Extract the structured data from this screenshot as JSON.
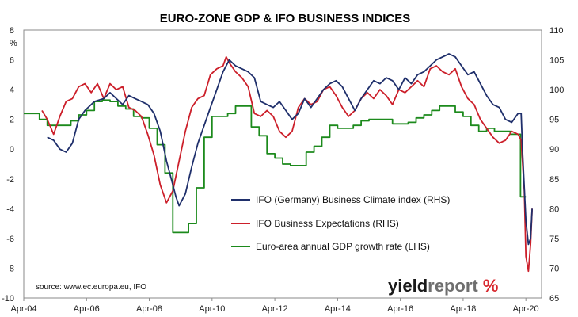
{
  "chart_data": {
    "type": "line",
    "title": "EURO-ZONE GDP & IFO BUSINESS INDICES",
    "left_axis": {
      "unit": "%",
      "range": [
        -10,
        8
      ],
      "ticks": [
        8,
        6,
        4,
        2,
        0,
        -2,
        -4,
        -6,
        -8,
        -10
      ]
    },
    "right_axis": {
      "range": [
        65,
        110
      ],
      "ticks": [
        110,
        105,
        100,
        95,
        90,
        85,
        80,
        75,
        70,
        65
      ]
    },
    "x_axis": {
      "range": [
        2004.25,
        2020.75
      ],
      "ticks": [
        "Apr-04",
        "Apr-06",
        "Apr-08",
        "Apr-10",
        "Apr-12",
        "Apr-14",
        "Apr-16",
        "Apr-18",
        "Apr-20"
      ],
      "tick_years": [
        2004.25,
        2006.25,
        2008.25,
        2010.25,
        2012.25,
        2014.25,
        2016.25,
        2018.25,
        2020.25
      ]
    },
    "grid": false,
    "legend_position": "center-right",
    "series": [
      {
        "name": "IFO (Germany) Business Climate index (RHS)",
        "axis": "right",
        "color": "#1f2f6b",
        "points": [
          [
            2005.0,
            92.0
          ],
          [
            2005.2,
            91.5
          ],
          [
            2005.4,
            90.0
          ],
          [
            2005.6,
            89.5
          ],
          [
            2005.8,
            91.0
          ],
          [
            2006.0,
            95.0
          ],
          [
            2006.2,
            96.5
          ],
          [
            2006.5,
            98.0
          ],
          [
            2006.8,
            98.5
          ],
          [
            2007.0,
            99.5
          ],
          [
            2007.2,
            98.5
          ],
          [
            2007.4,
            97.5
          ],
          [
            2007.6,
            99.0
          ],
          [
            2007.8,
            98.5
          ],
          [
            2008.0,
            98.0
          ],
          [
            2008.2,
            97.5
          ],
          [
            2008.4,
            96.0
          ],
          [
            2008.6,
            93.0
          ],
          [
            2008.8,
            88.0
          ],
          [
            2009.0,
            84.0
          ],
          [
            2009.1,
            82.0
          ],
          [
            2009.2,
            80.5
          ],
          [
            2009.4,
            82.5
          ],
          [
            2009.6,
            87.0
          ],
          [
            2009.8,
            91.0
          ],
          [
            2010.0,
            94.0
          ],
          [
            2010.2,
            97.0
          ],
          [
            2010.4,
            100.0
          ],
          [
            2010.6,
            103.0
          ],
          [
            2010.8,
            105.0
          ],
          [
            2011.0,
            104.0
          ],
          [
            2011.2,
            103.5
          ],
          [
            2011.4,
            103.0
          ],
          [
            2011.6,
            102.0
          ],
          [
            2011.8,
            98.0
          ],
          [
            2012.0,
            97.5
          ],
          [
            2012.2,
            97.0
          ],
          [
            2012.4,
            98.0
          ],
          [
            2012.6,
            96.5
          ],
          [
            2012.8,
            95.0
          ],
          [
            2013.0,
            96.0
          ],
          [
            2013.2,
            98.5
          ],
          [
            2013.4,
            97.0
          ],
          [
            2013.6,
            98.5
          ],
          [
            2013.8,
            100.0
          ],
          [
            2014.0,
            101.0
          ],
          [
            2014.2,
            101.5
          ],
          [
            2014.4,
            100.5
          ],
          [
            2014.6,
            98.5
          ],
          [
            2014.8,
            96.5
          ],
          [
            2015.0,
            98.5
          ],
          [
            2015.2,
            100.0
          ],
          [
            2015.4,
            101.5
          ],
          [
            2015.6,
            101.0
          ],
          [
            2015.8,
            102.0
          ],
          [
            2016.0,
            101.5
          ],
          [
            2016.2,
            100.0
          ],
          [
            2016.4,
            102.0
          ],
          [
            2016.6,
            101.0
          ],
          [
            2016.8,
            102.5
          ],
          [
            2017.0,
            103.0
          ],
          [
            2017.2,
            104.0
          ],
          [
            2017.4,
            105.0
          ],
          [
            2017.6,
            105.5
          ],
          [
            2017.8,
            106.0
          ],
          [
            2018.0,
            105.5
          ],
          [
            2018.2,
            104.0
          ],
          [
            2018.4,
            102.5
          ],
          [
            2018.6,
            103.0
          ],
          [
            2018.8,
            101.0
          ],
          [
            2019.0,
            99.0
          ],
          [
            2019.2,
            97.5
          ],
          [
            2019.4,
            97.0
          ],
          [
            2019.6,
            95.0
          ],
          [
            2019.8,
            94.5
          ],
          [
            2020.0,
            96.0
          ],
          [
            2020.1,
            96.0
          ],
          [
            2020.15,
            89.0
          ],
          [
            2020.25,
            78.0
          ],
          [
            2020.33,
            74.0
          ],
          [
            2020.4,
            75.0
          ],
          [
            2020.45,
            80.0
          ]
        ]
      },
      {
        "name": "IFO Business Expectations (RHS)",
        "axis": "right",
        "color": "#cc1f2a",
        "points": [
          [
            2004.83,
            96.5
          ],
          [
            2005.0,
            95.0
          ],
          [
            2005.2,
            92.5
          ],
          [
            2005.4,
            95.5
          ],
          [
            2005.6,
            98.0
          ],
          [
            2005.8,
            98.5
          ],
          [
            2006.0,
            100.5
          ],
          [
            2006.2,
            101.0
          ],
          [
            2006.4,
            99.5
          ],
          [
            2006.6,
            101.0
          ],
          [
            2006.8,
            98.5
          ],
          [
            2007.0,
            101.0
          ],
          [
            2007.2,
            100.0
          ],
          [
            2007.4,
            100.5
          ],
          [
            2007.6,
            97.0
          ],
          [
            2007.8,
            96.5
          ],
          [
            2008.0,
            95.5
          ],
          [
            2008.2,
            92.5
          ],
          [
            2008.4,
            89.0
          ],
          [
            2008.6,
            84.0
          ],
          [
            2008.8,
            81.0
          ],
          [
            2009.0,
            83.0
          ],
          [
            2009.2,
            88.0
          ],
          [
            2009.4,
            93.0
          ],
          [
            2009.6,
            97.0
          ],
          [
            2009.8,
            98.5
          ],
          [
            2010.0,
            99.0
          ],
          [
            2010.2,
            102.5
          ],
          [
            2010.4,
            103.5
          ],
          [
            2010.6,
            104.0
          ],
          [
            2010.7,
            105.5
          ],
          [
            2010.8,
            104.5
          ],
          [
            2011.0,
            103.0
          ],
          [
            2011.2,
            102.0
          ],
          [
            2011.4,
            100.5
          ],
          [
            2011.6,
            96.0
          ],
          [
            2011.8,
            95.5
          ],
          [
            2012.0,
            96.5
          ],
          [
            2012.2,
            95.5
          ],
          [
            2012.4,
            93.0
          ],
          [
            2012.6,
            92.0
          ],
          [
            2012.8,
            93.0
          ],
          [
            2013.0,
            97.0
          ],
          [
            2013.2,
            98.5
          ],
          [
            2013.4,
            97.5
          ],
          [
            2013.6,
            98.0
          ],
          [
            2013.8,
            100.0
          ],
          [
            2014.0,
            100.5
          ],
          [
            2014.2,
            99.0
          ],
          [
            2014.4,
            97.0
          ],
          [
            2014.6,
            95.5
          ],
          [
            2014.8,
            96.5
          ],
          [
            2015.0,
            98.5
          ],
          [
            2015.2,
            99.5
          ],
          [
            2015.4,
            98.5
          ],
          [
            2015.6,
            100.0
          ],
          [
            2015.8,
            99.0
          ],
          [
            2016.0,
            97.5
          ],
          [
            2016.2,
            100.0
          ],
          [
            2016.4,
            99.5
          ],
          [
            2016.6,
            100.5
          ],
          [
            2016.8,
            101.5
          ],
          [
            2017.0,
            100.5
          ],
          [
            2017.2,
            103.5
          ],
          [
            2017.4,
            104.0
          ],
          [
            2017.6,
            103.0
          ],
          [
            2017.8,
            102.5
          ],
          [
            2018.0,
            103.5
          ],
          [
            2018.2,
            100.5
          ],
          [
            2018.4,
            98.5
          ],
          [
            2018.6,
            97.5
          ],
          [
            2018.8,
            95.0
          ],
          [
            2019.0,
            93.5
          ],
          [
            2019.2,
            92.0
          ],
          [
            2019.4,
            91.0
          ],
          [
            2019.6,
            91.5
          ],
          [
            2019.8,
            93.0
          ],
          [
            2020.0,
            92.5
          ],
          [
            2020.1,
            91.5
          ],
          [
            2020.2,
            83.0
          ],
          [
            2020.25,
            72.0
          ],
          [
            2020.33,
            69.5
          ],
          [
            2020.4,
            74.0
          ],
          [
            2020.45,
            80.0
          ]
        ]
      },
      {
        "name": "Euro-area annual GDP growth rate (LHS)",
        "axis": "left",
        "color": "#1c8a1c",
        "points": [
          [
            2004.25,
            2.4
          ],
          [
            2004.5,
            2.4
          ],
          [
            2004.75,
            2.0
          ],
          [
            2005.0,
            1.6
          ],
          [
            2005.5,
            1.6
          ],
          [
            2005.75,
            1.9
          ],
          [
            2006.0,
            2.3
          ],
          [
            2006.25,
            2.6
          ],
          [
            2006.5,
            3.2
          ],
          [
            2006.75,
            3.3
          ],
          [
            2007.0,
            3.2
          ],
          [
            2007.25,
            2.9
          ],
          [
            2007.5,
            2.7
          ],
          [
            2007.75,
            2.2
          ],
          [
            2008.0,
            2.1
          ],
          [
            2008.25,
            1.4
          ],
          [
            2008.5,
            0.3
          ],
          [
            2008.75,
            -1.6
          ],
          [
            2009.0,
            -5.6
          ],
          [
            2009.25,
            -5.6
          ],
          [
            2009.5,
            -5.0
          ],
          [
            2009.75,
            -2.6
          ],
          [
            2010.0,
            0.8
          ],
          [
            2010.25,
            2.2
          ],
          [
            2010.5,
            2.2
          ],
          [
            2010.75,
            2.4
          ],
          [
            2011.0,
            2.9
          ],
          [
            2011.25,
            2.9
          ],
          [
            2011.5,
            1.5
          ],
          [
            2011.75,
            0.9
          ],
          [
            2012.0,
            -0.3
          ],
          [
            2012.25,
            -0.6
          ],
          [
            2012.5,
            -1.0
          ],
          [
            2012.75,
            -1.1
          ],
          [
            2013.0,
            -1.1
          ],
          [
            2013.25,
            -0.2
          ],
          [
            2013.5,
            0.2
          ],
          [
            2013.75,
            0.8
          ],
          [
            2014.0,
            1.6
          ],
          [
            2014.25,
            1.4
          ],
          [
            2014.5,
            1.4
          ],
          [
            2014.75,
            1.6
          ],
          [
            2015.0,
            1.9
          ],
          [
            2015.25,
            2.0
          ],
          [
            2015.5,
            2.0
          ],
          [
            2015.75,
            2.0
          ],
          [
            2016.0,
            1.7
          ],
          [
            2016.25,
            1.7
          ],
          [
            2016.5,
            1.8
          ],
          [
            2016.75,
            2.1
          ],
          [
            2017.0,
            2.3
          ],
          [
            2017.25,
            2.6
          ],
          [
            2017.5,
            2.9
          ],
          [
            2017.75,
            2.9
          ],
          [
            2018.0,
            2.5
          ],
          [
            2018.25,
            2.2
          ],
          [
            2018.5,
            1.6
          ],
          [
            2018.75,
            1.2
          ],
          [
            2019.0,
            1.4
          ],
          [
            2019.25,
            1.2
          ],
          [
            2019.5,
            1.2
          ],
          [
            2019.75,
            1.0
          ],
          [
            2020.0,
            1.0
          ],
          [
            2020.08,
            -3.2
          ],
          [
            2020.25,
            -3.2
          ]
        ]
      }
    ],
    "annotations": {
      "source": "source: www.ec.europa.eu, IFO",
      "logo_parts": [
        "yield",
        "report",
        " %"
      ]
    }
  }
}
